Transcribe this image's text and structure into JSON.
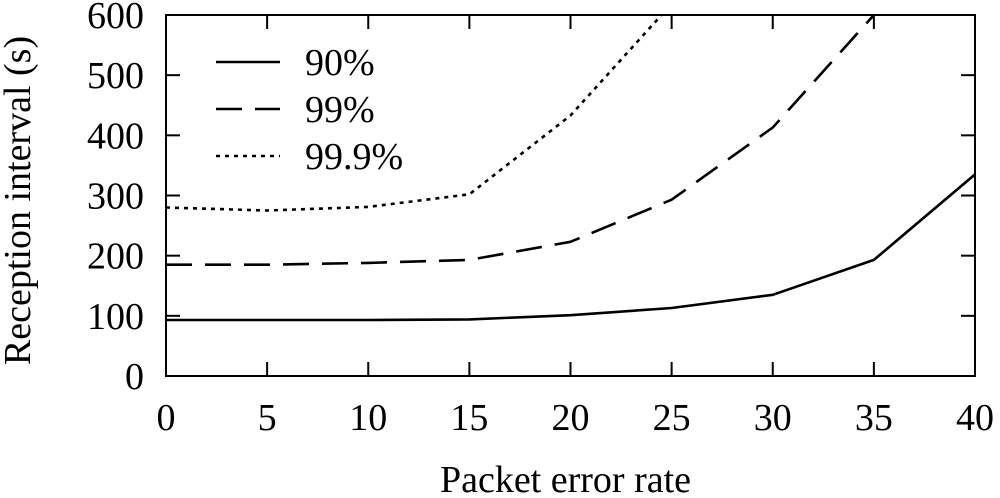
{
  "chart_data": {
    "type": "line",
    "title": "",
    "xlabel": "Packet error rate",
    "ylabel": "Reception interval (s)",
    "xlim": [
      0,
      40
    ],
    "ylim": [
      0,
      600
    ],
    "xticks": [
      "0",
      "5",
      "10",
      "15",
      "20",
      "25",
      "30",
      "35",
      "40"
    ],
    "yticks": [
      "0",
      "100",
      "200",
      "300",
      "400",
      "500",
      "600"
    ],
    "grid": false,
    "legend_position": "top-left",
    "series": [
      {
        "name": "90%",
        "style": "solid",
        "x": [
          0,
          5,
          10,
          15,
          20,
          25,
          30,
          35,
          40
        ],
        "y": [
          93,
          93,
          93,
          94,
          101,
          113,
          135,
          193,
          335
        ]
      },
      {
        "name": "99%",
        "style": "dashed",
        "x": [
          0,
          5,
          10,
          15,
          20,
          25,
          30,
          35
        ],
        "y": [
          185,
          185,
          188,
          193,
          223,
          293,
          413,
          600
        ]
      },
      {
        "name": "99.9%",
        "style": "dotted",
        "x": [
          0,
          5,
          10,
          15,
          20,
          24.5
        ],
        "y": [
          280,
          275,
          281,
          302,
          433,
          600
        ]
      }
    ]
  }
}
